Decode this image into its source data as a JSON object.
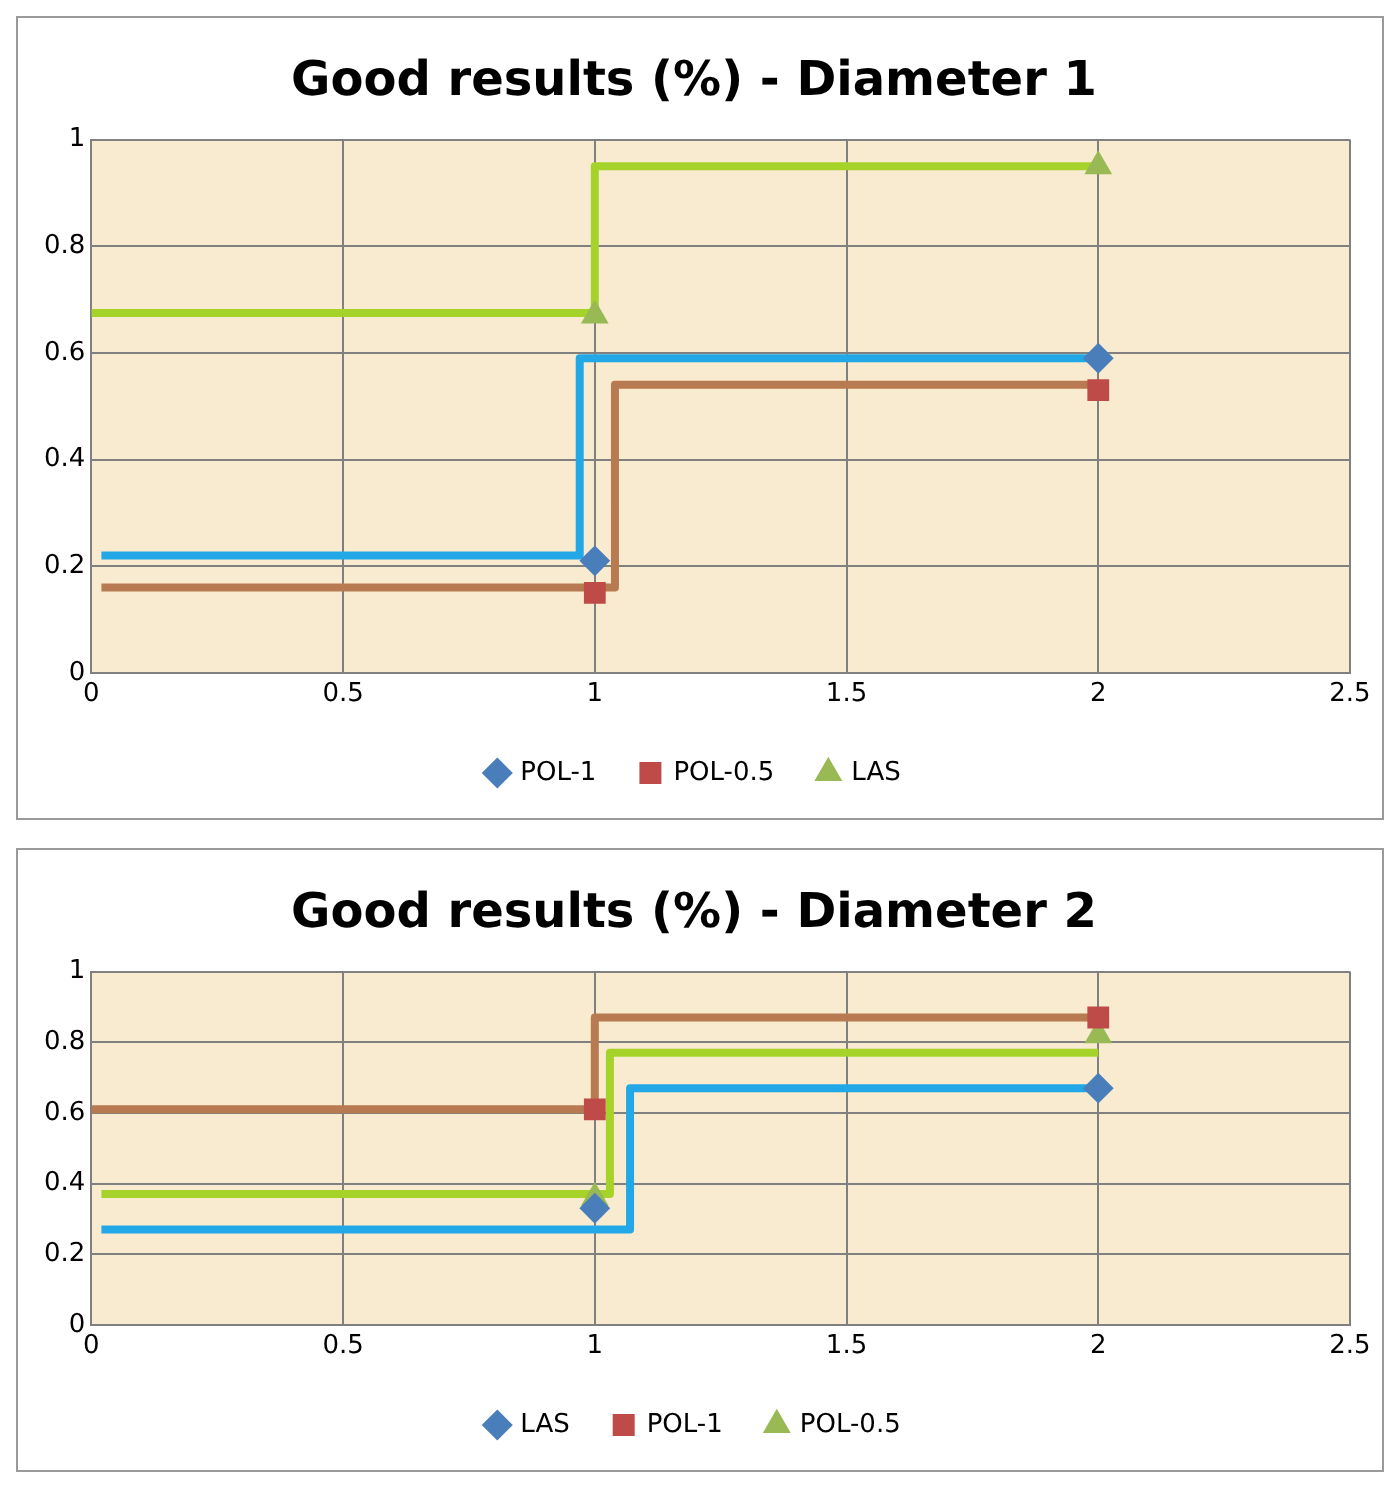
{
  "chart_data": [
    {
      "type": "scatter",
      "title": "Good results (%) - Diameter 1",
      "xlim": [
        0,
        2.5
      ],
      "xticks": [
        0,
        0.5,
        1,
        1.5,
        2,
        2.5
      ],
      "ylim": [
        0,
        1
      ],
      "yticks": [
        0,
        0.2,
        0.4,
        0.6,
        0.8,
        1
      ],
      "grid": true,
      "legend": "bottom",
      "series": [
        {
          "type": "step",
          "color": "#22a8e6",
          "x": [
            0.02,
            0.97,
            2
          ],
          "values": [
            0.22,
            0.59,
            0.59
          ]
        },
        {
          "type": "step",
          "color": "#b87a50",
          "x": [
            0.02,
            1.04,
            2
          ],
          "values": [
            0.16,
            0.54,
            0.54
          ]
        },
        {
          "type": "step",
          "color": "#a6d32a",
          "x": [
            0,
            1,
            2
          ],
          "values": [
            0.675,
            0.95,
            0.95
          ]
        },
        {
          "type": "scatter",
          "name": "POL-1",
          "color": "#4a7ebb",
          "marker": "diamond",
          "x": [
            1,
            2
          ],
          "values": [
            0.21,
            0.59
          ]
        },
        {
          "type": "scatter",
          "name": "POL-0.5",
          "color": "#be4b48",
          "marker": "square",
          "x": [
            1,
            2
          ],
          "values": [
            0.15,
            0.53
          ]
        },
        {
          "type": "scatter",
          "name": "LAS",
          "color": "#98b954",
          "marker": "triangle",
          "x": [
            1,
            2
          ],
          "values": [
            0.67,
            0.95
          ]
        }
      ]
    },
    {
      "type": "scatter",
      "title": "Good results (%) - Diameter 2",
      "xlim": [
        0,
        2.5
      ],
      "xticks": [
        0,
        0.5,
        1,
        1.5,
        2,
        2.5
      ],
      "ylim": [
        0,
        1
      ],
      "yticks": [
        0,
        0.2,
        0.4,
        0.6,
        0.8,
        1
      ],
      "grid": true,
      "legend": "bottom",
      "series": [
        {
          "type": "step",
          "color": "#b87a50",
          "x": [
            0,
            1,
            2
          ],
          "values": [
            0.61,
            0.87,
            0.87
          ]
        },
        {
          "type": "step",
          "color": "#a6d32a",
          "x": [
            0.02,
            1.03,
            2
          ],
          "values": [
            0.37,
            0.77,
            0.77
          ]
        },
        {
          "type": "step",
          "color": "#22a8e6",
          "x": [
            0.02,
            1.07,
            2
          ],
          "values": [
            0.27,
            0.67,
            0.67
          ]
        },
        {
          "type": "scatter",
          "name": "LAS",
          "color": "#4a7ebb",
          "marker": "diamond",
          "x": [
            1,
            2
          ],
          "values": [
            0.33,
            0.67
          ]
        },
        {
          "type": "scatter",
          "name": "POL-1",
          "color": "#be4b48",
          "marker": "square",
          "x": [
            1,
            2
          ],
          "values": [
            0.61,
            0.87
          ]
        },
        {
          "type": "scatter",
          "name": "POL-0.5",
          "color": "#98b954",
          "marker": "triangle",
          "x": [
            1,
            2
          ],
          "values": [
            0.36,
            0.82
          ]
        }
      ]
    }
  ]
}
